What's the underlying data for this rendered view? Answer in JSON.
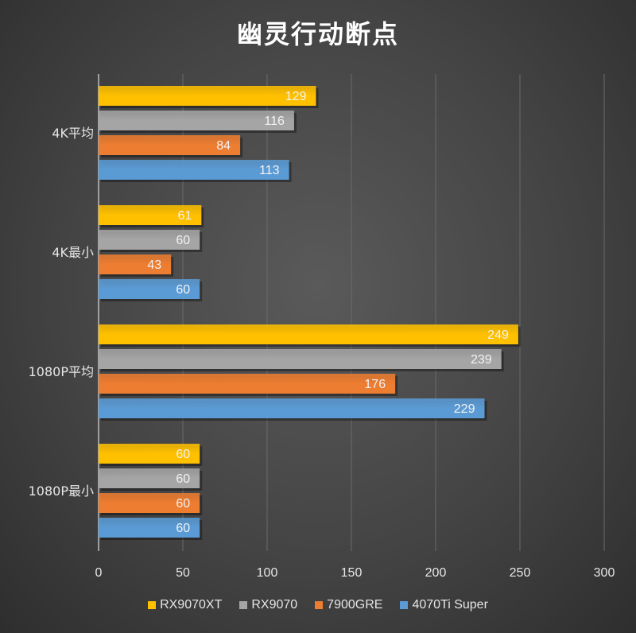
{
  "chart_data": {
    "type": "bar",
    "orientation": "horizontal",
    "title": "幽灵行动断点",
    "categories": [
      "4K平均",
      "4K最小",
      "1080P平均",
      "1080P最小"
    ],
    "series": [
      {
        "name": "RX9070XT",
        "color": "#ffc000",
        "values": [
          129,
          61,
          249,
          60
        ]
      },
      {
        "name": "RX9070",
        "color": "#a5a5a5",
        "values": [
          116,
          60,
          239,
          60
        ]
      },
      {
        "name": "7900GRE",
        "color": "#ed7d31",
        "values": [
          84,
          43,
          176,
          60
        ]
      },
      {
        "name": "4070Ti Super",
        "color": "#5b9bd5",
        "values": [
          113,
          60,
          229,
          60
        ]
      }
    ],
    "xlim": [
      0,
      300
    ],
    "xticks": [
      "0",
      "50",
      "100",
      "150",
      "200",
      "250",
      "300"
    ],
    "grid": true,
    "data_labels": true,
    "legend": "bottom"
  }
}
